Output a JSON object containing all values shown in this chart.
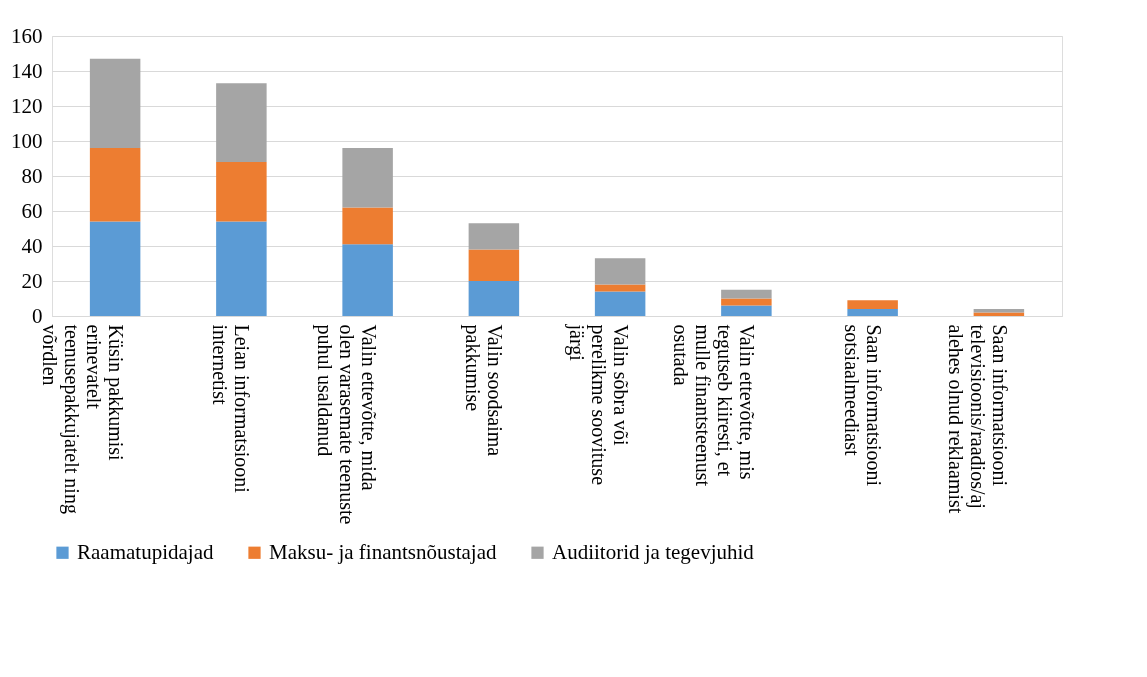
{
  "chart_data": {
    "type": "bar",
    "stacked": true,
    "categories": [
      "Küsin pakkumisi erinevatelt teenusepakkujatelt ning võrdlen",
      "Leian informatsiooni internetist",
      "Valin ettevõtte, mida olen varasemate teenuste puhul usaldanud",
      "Valin soodsaima pakkumise",
      "Valin sõbra või perelikme soovituse järgi",
      "Valin ettevõtte, mis tegutseb kiiresti, et mulle finantsteenust osutada",
      "Saan informatsiooni sotsiaalmeediast",
      "Saan informatsiooni televisioonis/raadios/ajalehes olnud reklaamist"
    ],
    "series": [
      {
        "name": "Raamatupidajad",
        "color": "#5b9bd5",
        "values": [
          54,
          54,
          41,
          20,
          14,
          6,
          4,
          0
        ]
      },
      {
        "name": "Maksu- ja finantsnõustajad",
        "color": "#ed7d31",
        "values": [
          42,
          34,
          21,
          18,
          4,
          4,
          5,
          2
        ]
      },
      {
        "name": "Audiitorid ja tegevjuhid",
        "color": "#a5a5a5",
        "values": [
          51,
          45,
          34,
          15,
          15,
          5,
          0,
          2
        ]
      }
    ],
    "ylim": [
      0,
      160
    ],
    "yticks": [
      0,
      20,
      40,
      60,
      80,
      100,
      120,
      140,
      160
    ],
    "grid": "y",
    "legend": "bottom"
  }
}
